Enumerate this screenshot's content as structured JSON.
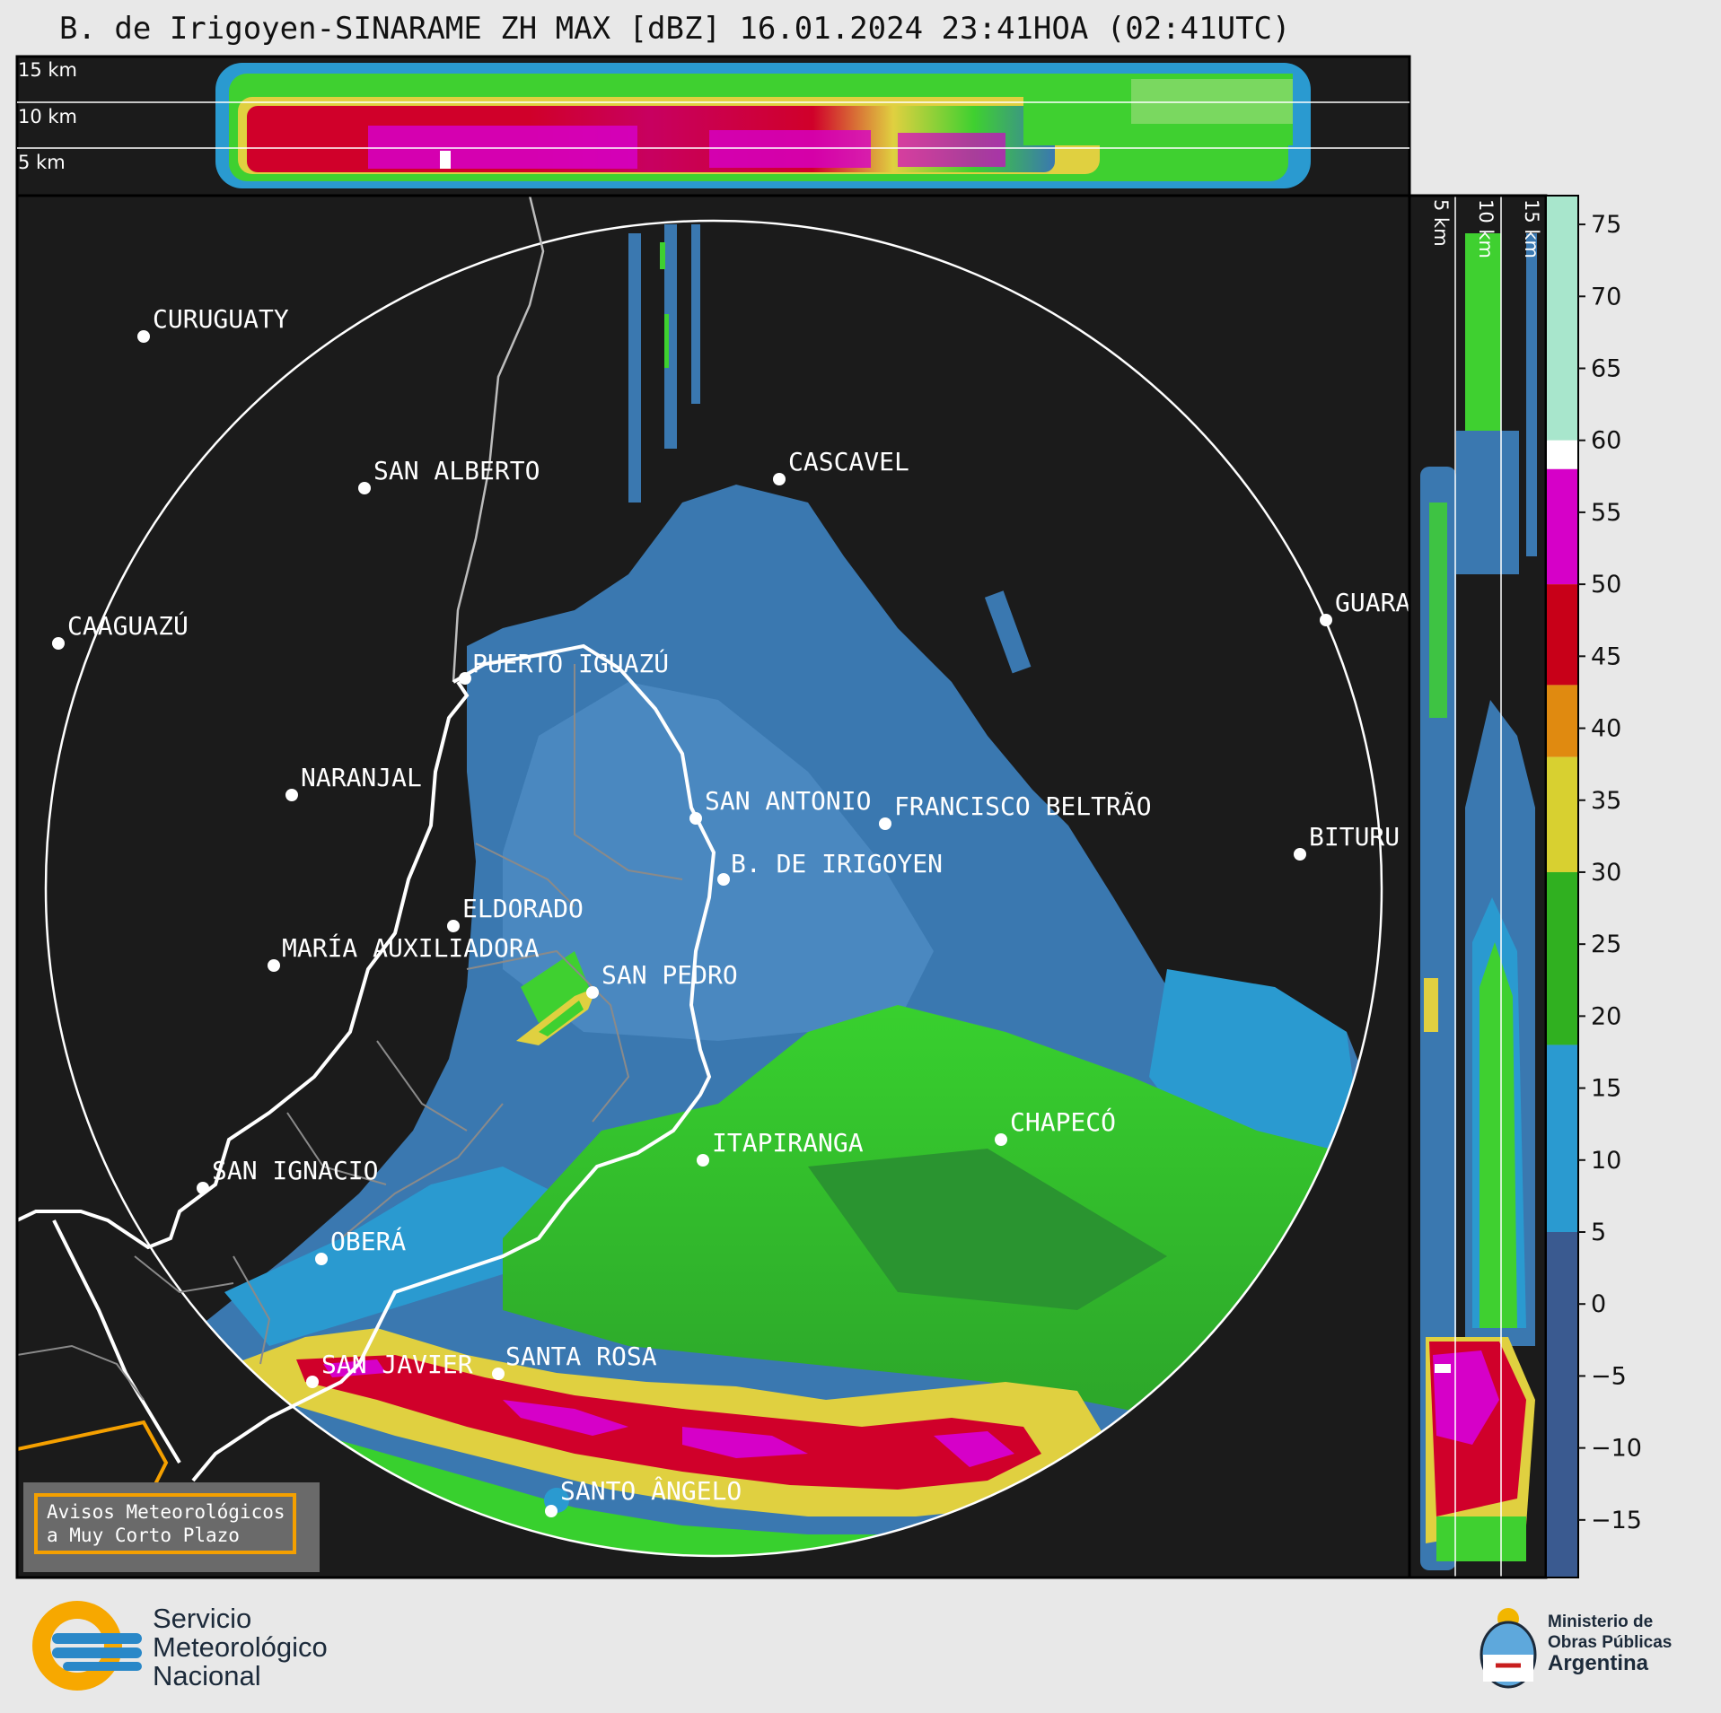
{
  "title": "B. de Irigoyen-SINARAME ZH MAX [dBZ] 16.01.2024 23:41HOA (02:41UTC)",
  "top_panel": {
    "height_labels": [
      "15 km",
      "10 km",
      "5 km"
    ]
  },
  "side_panel": {
    "height_labels": [
      "5 km",
      "10 km",
      "15 km"
    ]
  },
  "cities": [
    {
      "name": "CURUGUATY",
      "radar": false
    },
    {
      "name": "SAN ALBERTO",
      "radar": false
    },
    {
      "name": "CASCAVEL",
      "radar": false
    },
    {
      "name": "CAAGUAZÚ",
      "radar": false
    },
    {
      "name": "GUARA",
      "radar": false
    },
    {
      "name": "PUERTO IGUAZÚ",
      "radar": false
    },
    {
      "name": "NARANJAL",
      "radar": false
    },
    {
      "name": "SAN ANTONIO",
      "radar": false
    },
    {
      "name": "FRANCISCO BELTRÃO",
      "radar": false
    },
    {
      "name": "BITURU",
      "radar": false
    },
    {
      "name": "B. DE IRIGOYEN",
      "radar": true
    },
    {
      "name": "ELDORADO",
      "radar": false
    },
    {
      "name": "MARÍA AUXILIADORA",
      "radar": false
    },
    {
      "name": "SAN PEDRO",
      "radar": false
    },
    {
      "name": "CHAPECÓ",
      "radar": false
    },
    {
      "name": "ITAPIRANGA",
      "radar": false
    },
    {
      "name": "SAN IGNACIO",
      "radar": false
    },
    {
      "name": "OBERÁ",
      "radar": false
    },
    {
      "name": "SAN JAVIER",
      "radar": false
    },
    {
      "name": "SANTA ROSA",
      "radar": false
    },
    {
      "name": "SANTO ÂNGELO",
      "radar": false
    }
  ],
  "colorbar": {
    "unit": "dBZ",
    "ticks": [
      "75",
      "70",
      "65",
      "60",
      "55",
      "50",
      "45",
      "40",
      "35",
      "30",
      "25",
      "20",
      "15",
      "10",
      "5",
      "0",
      "−5",
      "−10",
      "−15"
    ],
    "min": -19,
    "max": 77,
    "bands": [
      {
        "from": 60,
        "to": 77,
        "color": "#a8e6cc"
      },
      {
        "from": 58,
        "to": 60,
        "color": "#ffffff"
      },
      {
        "from": 50,
        "to": 58,
        "color": "#d600c8"
      },
      {
        "from": 43,
        "to": 50,
        "color": "#c80018"
      },
      {
        "from": 38,
        "to": 43,
        "color": "#e08a10"
      },
      {
        "from": 30,
        "to": 38,
        "color": "#d8d030"
      },
      {
        "from": 18,
        "to": 30,
        "color": "#30b020"
      },
      {
        "from": 5,
        "to": 18,
        "color": "#2a9ad0"
      },
      {
        "from": -19,
        "to": 5,
        "color": "#3a5a90"
      }
    ]
  },
  "avisos": {
    "line1": "Avisos Meteorológicos",
    "line2": "a Muy Corto Plazo"
  },
  "smn": {
    "line1": "Servicio",
    "line2": "Meteorológico",
    "line3": "Nacional"
  },
  "ministerio": {
    "line1": "Ministerio de",
    "line2": "Obras Públicas",
    "line3": "Argentina"
  },
  "colors": {
    "map_bg": "#1b1b1b",
    "page_bg": "#e8e8e8",
    "rain_light": "#3a78b0",
    "rain_mid": "#3fd030",
    "rain_heavy": "#d0002a",
    "accent": "#f5a000"
  }
}
